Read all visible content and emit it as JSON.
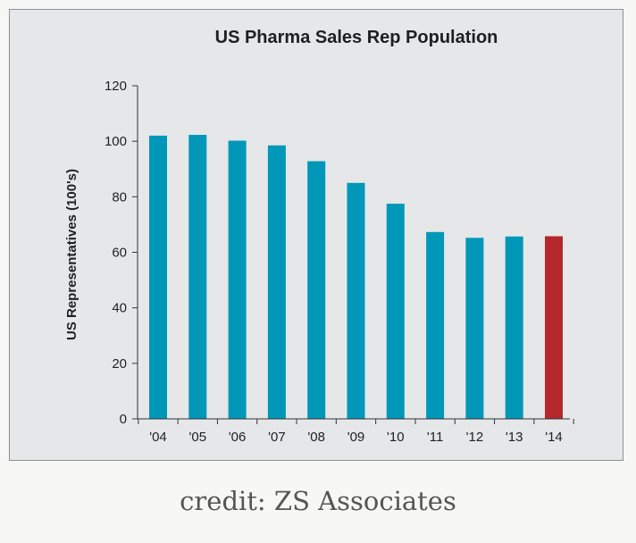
{
  "chart_data": {
    "type": "bar",
    "title": "US Pharma Sales Rep Population",
    "xlabel": "",
    "ylabel": "US Representatives (100's)",
    "categories": [
      "'04",
      "'05",
      "'06",
      "'07",
      "'08",
      "'09",
      "'10",
      "'11",
      "'12",
      "'13",
      "'14"
    ],
    "values": [
      102,
      102.3,
      100.2,
      98.5,
      92.8,
      85,
      77.5,
      67.3,
      65.2,
      65.7,
      65.8
    ],
    "ylim": [
      0,
      120
    ],
    "yticks": [
      "0",
      "20",
      "40",
      "60",
      "80",
      "100",
      "120"
    ],
    "grid": false,
    "legend": "none",
    "colors": {
      "bar": "#0097b9",
      "highlight_bar": "#b4272a",
      "background": "#e6e7e8"
    },
    "highlight_index": 10
  },
  "credit": "credit: ZS Associates"
}
